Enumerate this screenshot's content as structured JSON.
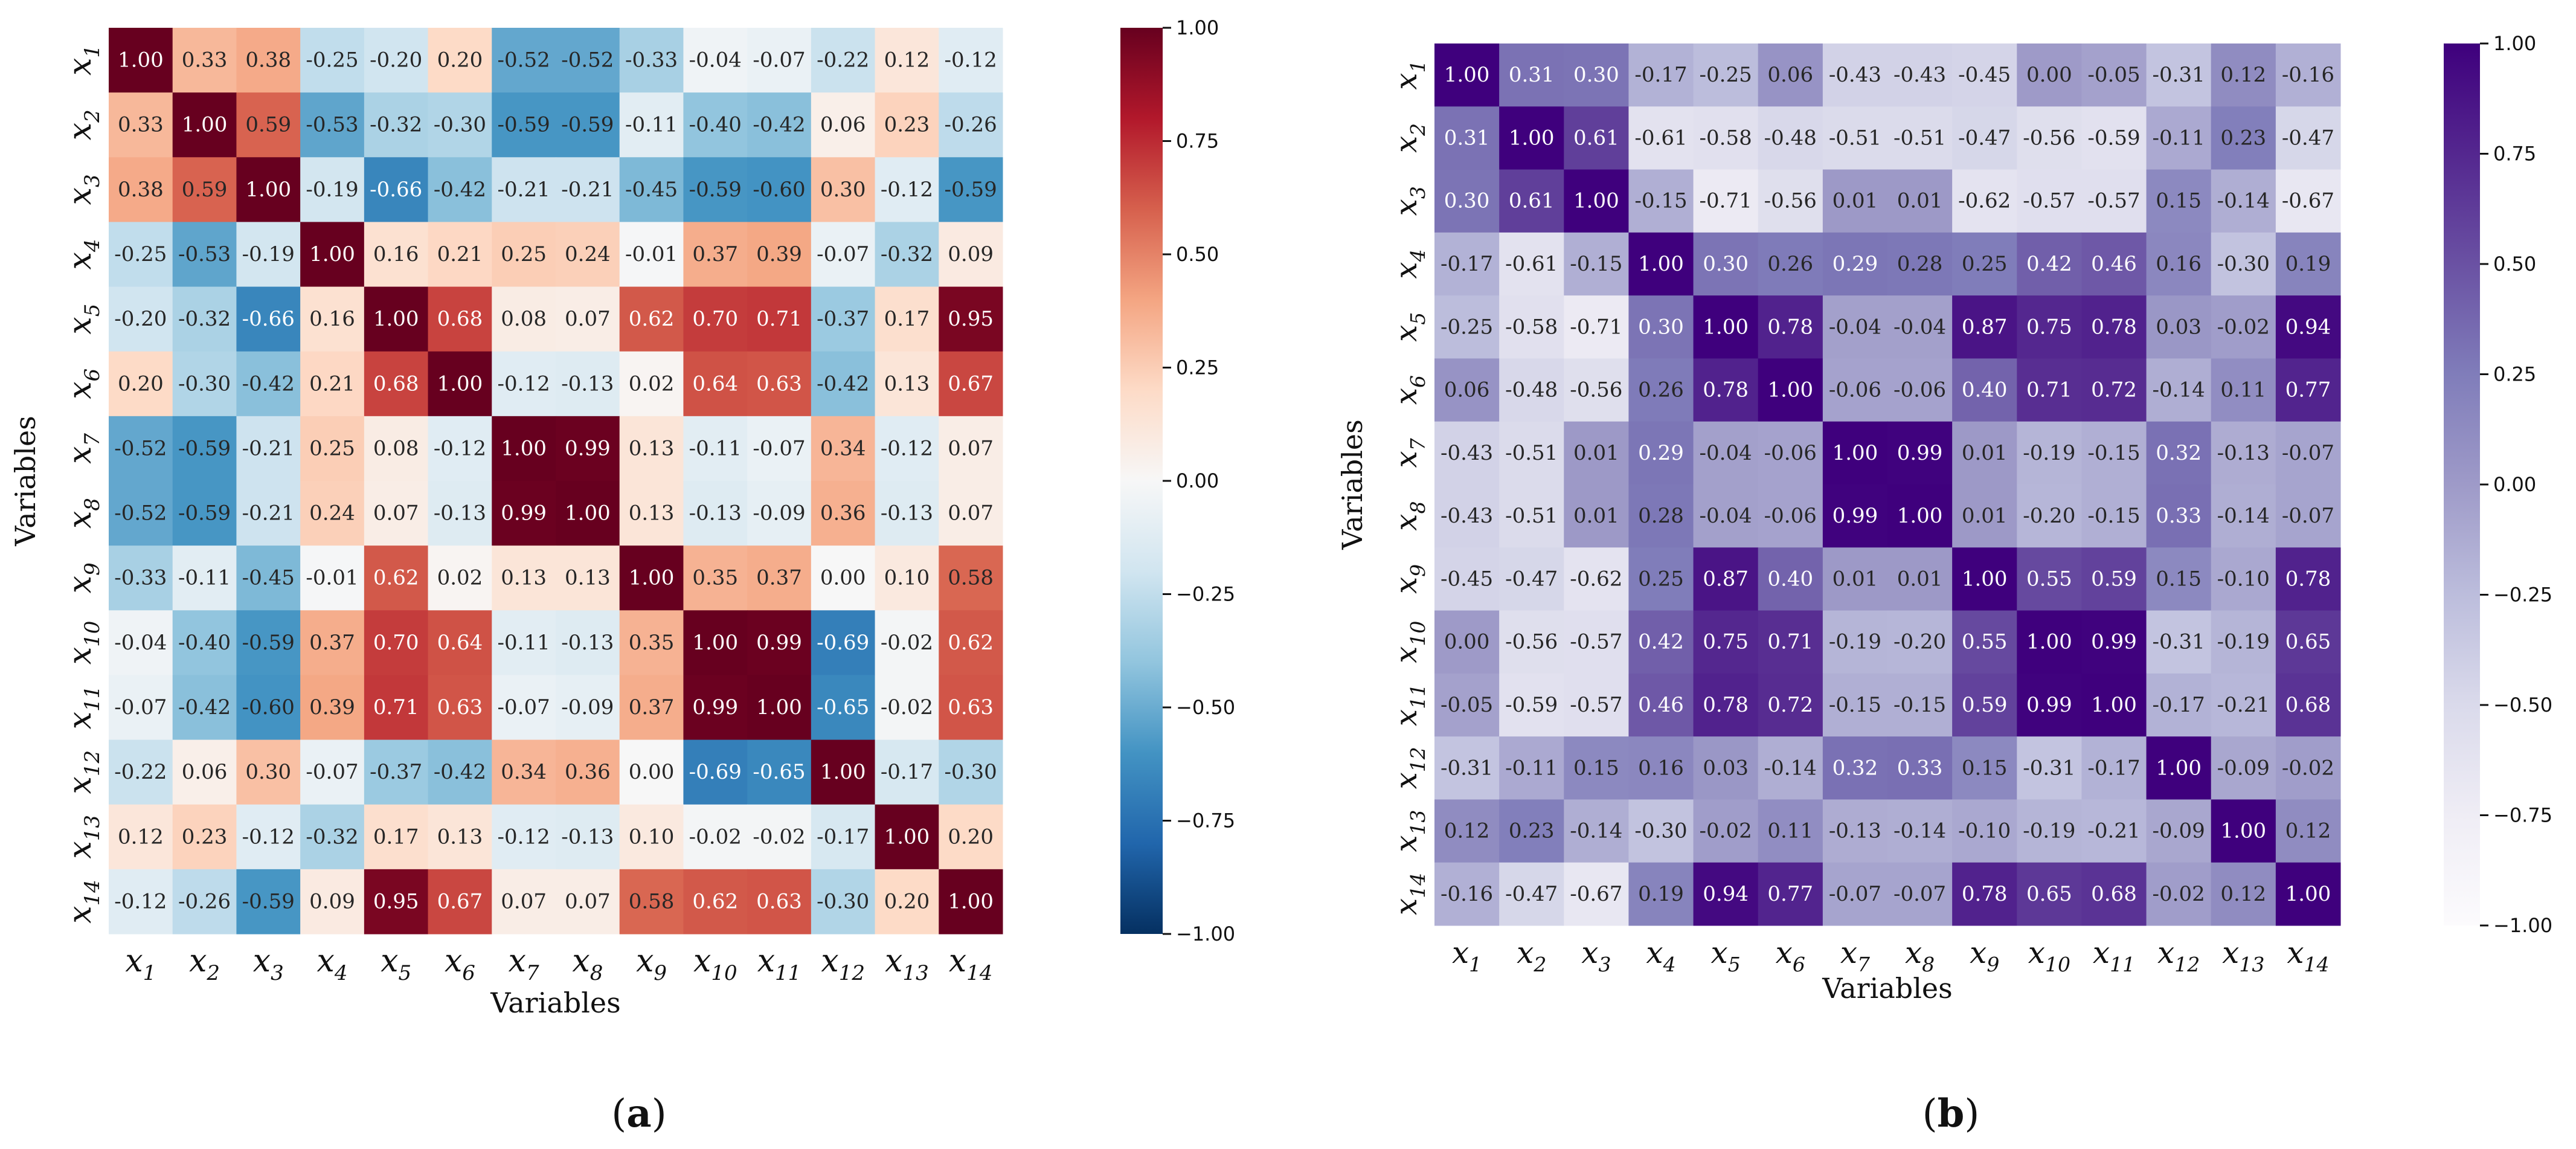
{
  "chart_data": [
    {
      "type": "heatmap",
      "panel_label": "a",
      "xlabel": "Variables",
      "ylabel": "Variables",
      "colormap": "RdBu_r",
      "colors": {
        "low": "#053061",
        "mid": "#f7f7f7",
        "high": "#67001f"
      },
      "vmin": -1.0,
      "vmax": 1.0,
      "colorbar_ticks": [
        "1.00",
        "0.75",
        "0.50",
        "0.25",
        "0.00",
        "−0.25",
        "−0.50",
        "−0.75",
        "−1.00"
      ],
      "labels": [
        {
          "base": "x",
          "sub": "1"
        },
        {
          "base": "x",
          "sub": "2"
        },
        {
          "base": "x",
          "sub": "3"
        },
        {
          "base": "x",
          "sub": "4"
        },
        {
          "base": "x",
          "sub": "5"
        },
        {
          "base": "x",
          "sub": "6"
        },
        {
          "base": "x",
          "sub": "7"
        },
        {
          "base": "x",
          "sub": "8"
        },
        {
          "base": "x",
          "sub": "9"
        },
        {
          "base": "x",
          "sub": "10"
        },
        {
          "base": "x",
          "sub": "11"
        },
        {
          "base": "x",
          "sub": "12"
        },
        {
          "base": "x",
          "sub": "13"
        },
        {
          "base": "x",
          "sub": "14"
        }
      ],
      "matrix": [
        [
          1.0,
          0.33,
          0.38,
          -0.25,
          -0.2,
          0.2,
          -0.52,
          -0.52,
          -0.33,
          -0.04,
          -0.07,
          -0.22,
          0.12,
          -0.12
        ],
        [
          0.33,
          1.0,
          0.59,
          -0.53,
          -0.32,
          -0.3,
          -0.59,
          -0.59,
          -0.11,
          -0.4,
          -0.42,
          0.06,
          0.23,
          -0.26
        ],
        [
          0.38,
          0.59,
          1.0,
          -0.19,
          -0.66,
          -0.42,
          -0.21,
          -0.21,
          -0.45,
          -0.59,
          -0.6,
          0.3,
          -0.12,
          -0.59
        ],
        [
          -0.25,
          -0.53,
          -0.19,
          1.0,
          0.16,
          0.21,
          0.25,
          0.24,
          -0.01,
          0.37,
          0.39,
          -0.07,
          -0.32,
          0.09
        ],
        [
          -0.2,
          -0.32,
          -0.66,
          0.16,
          1.0,
          0.68,
          0.08,
          0.07,
          0.62,
          0.7,
          0.71,
          -0.37,
          0.17,
          0.95
        ],
        [
          0.2,
          -0.3,
          -0.42,
          0.21,
          0.68,
          1.0,
          -0.12,
          -0.13,
          0.02,
          0.64,
          0.63,
          -0.42,
          0.13,
          0.67
        ],
        [
          -0.52,
          -0.59,
          -0.21,
          0.25,
          0.08,
          -0.12,
          1.0,
          0.99,
          0.13,
          -0.11,
          -0.07,
          0.34,
          -0.12,
          0.07
        ],
        [
          -0.52,
          -0.59,
          -0.21,
          0.24,
          0.07,
          -0.13,
          0.99,
          1.0,
          0.13,
          -0.13,
          -0.09,
          0.36,
          -0.13,
          0.07
        ],
        [
          -0.33,
          -0.11,
          -0.45,
          -0.01,
          0.62,
          0.02,
          0.13,
          0.13,
          1.0,
          0.35,
          0.37,
          0.0,
          0.1,
          0.58
        ],
        [
          -0.04,
          -0.4,
          -0.59,
          0.37,
          0.7,
          0.64,
          -0.11,
          -0.13,
          0.35,
          1.0,
          0.99,
          -0.69,
          -0.02,
          0.62
        ],
        [
          -0.07,
          -0.42,
          -0.6,
          0.39,
          0.71,
          0.63,
          -0.07,
          -0.09,
          0.37,
          0.99,
          1.0,
          -0.65,
          -0.02,
          0.63
        ],
        [
          -0.22,
          0.06,
          0.3,
          -0.07,
          -0.37,
          -0.42,
          0.34,
          0.36,
          0.0,
          -0.69,
          -0.65,
          1.0,
          -0.17,
          -0.3
        ],
        [
          0.12,
          0.23,
          -0.12,
          -0.32,
          0.17,
          0.13,
          -0.12,
          -0.13,
          0.1,
          -0.02,
          -0.02,
          -0.17,
          1.0,
          0.2
        ],
        [
          -0.12,
          -0.26,
          -0.59,
          0.09,
          0.95,
          0.67,
          0.07,
          0.07,
          0.58,
          0.62,
          0.63,
          -0.3,
          0.2,
          1.0
        ]
      ]
    },
    {
      "type": "heatmap",
      "panel_label": "b",
      "xlabel": "Variables",
      "ylabel": "Variables",
      "colormap": "Purples",
      "colors": {
        "low": "#fcfbfd",
        "high": "#3f007d"
      },
      "vmin": -1.0,
      "vmax": 1.0,
      "colorbar_ticks": [
        "1.00",
        "0.75",
        "0.50",
        "0.25",
        "0.00",
        "−0.25",
        "−0.50",
        "−0.75",
        "−1.00"
      ],
      "labels": [
        {
          "base": "x",
          "sub": "1"
        },
        {
          "base": "x",
          "sub": "2"
        },
        {
          "base": "x",
          "sub": "3"
        },
        {
          "base": "x",
          "sub": "4"
        },
        {
          "base": "x",
          "sub": "5"
        },
        {
          "base": "x",
          "sub": "6"
        },
        {
          "base": "x",
          "sub": "7"
        },
        {
          "base": "x",
          "sub": "8"
        },
        {
          "base": "x",
          "sub": "9"
        },
        {
          "base": "x",
          "sub": "10"
        },
        {
          "base": "x",
          "sub": "11"
        },
        {
          "base": "x",
          "sub": "12"
        },
        {
          "base": "x",
          "sub": "13"
        },
        {
          "base": "x",
          "sub": "14"
        }
      ],
      "matrix": [
        [
          1.0,
          0.31,
          0.3,
          -0.17,
          -0.25,
          0.06,
          -0.43,
          -0.43,
          -0.45,
          -0.0,
          -0.05,
          -0.31,
          0.12,
          -0.16
        ],
        [
          0.31,
          1.0,
          0.61,
          -0.61,
          -0.58,
          -0.48,
          -0.51,
          -0.51,
          -0.47,
          -0.56,
          -0.59,
          -0.11,
          0.23,
          -0.47
        ],
        [
          0.3,
          0.61,
          1.0,
          -0.15,
          -0.71,
          -0.56,
          0.01,
          0.01,
          -0.62,
          -0.57,
          -0.57,
          0.15,
          -0.14,
          -0.67
        ],
        [
          -0.17,
          -0.61,
          -0.15,
          1.0,
          0.3,
          0.26,
          0.29,
          0.28,
          0.25,
          0.42,
          0.46,
          0.16,
          -0.3,
          0.19
        ],
        [
          -0.25,
          -0.58,
          -0.71,
          0.3,
          1.0,
          0.78,
          -0.04,
          -0.04,
          0.87,
          0.75,
          0.78,
          0.03,
          -0.02,
          0.94
        ],
        [
          0.06,
          -0.48,
          -0.56,
          0.26,
          0.78,
          1.0,
          -0.06,
          -0.06,
          0.4,
          0.71,
          0.72,
          -0.14,
          0.11,
          0.77
        ],
        [
          -0.43,
          -0.51,
          0.01,
          0.29,
          -0.04,
          -0.06,
          1.0,
          0.99,
          0.01,
          -0.19,
          -0.15,
          0.32,
          -0.13,
          -0.07
        ],
        [
          -0.43,
          -0.51,
          0.01,
          0.28,
          -0.04,
          -0.06,
          0.99,
          1.0,
          0.01,
          -0.2,
          -0.15,
          0.33,
          -0.14,
          -0.07
        ],
        [
          -0.45,
          -0.47,
          -0.62,
          0.25,
          0.87,
          0.4,
          0.01,
          0.01,
          1.0,
          0.55,
          0.59,
          0.15,
          -0.1,
          0.78
        ],
        [
          -0.0,
          -0.56,
          -0.57,
          0.42,
          0.75,
          0.71,
          -0.19,
          -0.2,
          0.55,
          1.0,
          0.99,
          -0.31,
          -0.19,
          0.65
        ],
        [
          -0.05,
          -0.59,
          -0.57,
          0.46,
          0.78,
          0.72,
          -0.15,
          -0.15,
          0.59,
          0.99,
          1.0,
          -0.17,
          -0.21,
          0.68
        ],
        [
          -0.31,
          -0.11,
          0.15,
          0.16,
          0.03,
          -0.14,
          0.32,
          0.33,
          0.15,
          -0.31,
          -0.17,
          1.0,
          -0.09,
          -0.02
        ],
        [
          0.12,
          0.23,
          -0.14,
          -0.3,
          -0.02,
          0.11,
          -0.13,
          -0.14,
          -0.1,
          -0.19,
          -0.21,
          -0.09,
          1.0,
          0.12
        ],
        [
          -0.16,
          -0.47,
          -0.67,
          0.19,
          0.94,
          0.77,
          -0.07,
          -0.07,
          0.78,
          0.65,
          0.68,
          -0.02,
          0.12,
          1.0
        ]
      ]
    }
  ]
}
